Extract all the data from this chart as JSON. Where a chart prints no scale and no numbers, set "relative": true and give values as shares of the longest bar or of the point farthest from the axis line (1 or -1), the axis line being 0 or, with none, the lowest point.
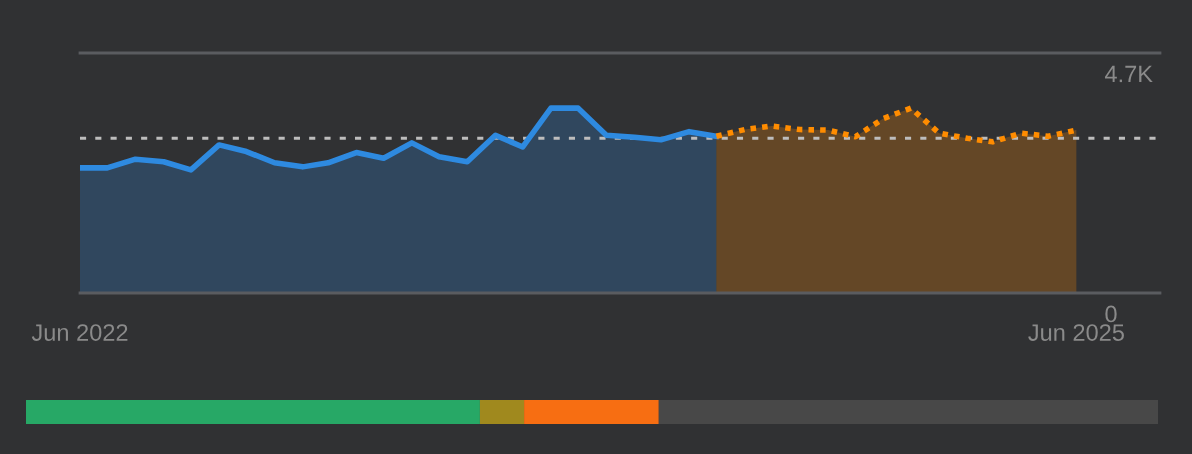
{
  "chart_data": [
    {
      "type": "area",
      "xlim": [
        "2022-06",
        "2025-09"
      ],
      "xticks": [
        {
          "value": "2022-06",
          "label": "Jun 2022"
        },
        {
          "value": "2025-06",
          "label": "Jun 2025"
        }
      ],
      "ylim": [
        0,
        4700
      ],
      "yticks": [
        0,
        {
          "value": 4700,
          "label": "4.7K"
        }
      ],
      "marker": "none",
      "series": [
        {
          "color": "#2e8ae0",
          "line_style": "solid",
          "x": [
            "2022-06",
            "2022-07",
            "2022-08",
            "2022-09",
            "2022-10",
            "2022-11",
            "2022-12",
            "2023-01",
            "2023-02",
            "2023-03",
            "2023-04",
            "2023-05",
            "2023-06",
            "2023-07",
            "2023-08",
            "2023-09",
            "2023-10",
            "2023-11",
            "2023-12",
            "2024-01",
            "2024-02",
            "2024-03",
            "2024-04",
            "2024-05"
          ],
          "values": [
            2450,
            2450,
            2620,
            2570,
            2410,
            2900,
            2770,
            2550,
            2470,
            2550,
            2750,
            2640,
            2940,
            2670,
            2570,
            3090,
            2860,
            3620,
            3620,
            3090,
            3050,
            3000,
            3160,
            3070
          ]
        },
        {
          "color": "#ff8c00",
          "line_style": "dotted",
          "x": [
            "2024-05",
            "2024-06",
            "2024-07",
            "2024-08",
            "2024-09",
            "2024-10",
            "2024-11",
            "2024-12",
            "2025-01",
            "2025-02",
            "2025-03",
            "2025-04",
            "2025-05",
            "2025-06"
          ],
          "values": [
            3070,
            3200,
            3270,
            3200,
            3190,
            3060,
            3420,
            3620,
            3130,
            3030,
            2960,
            3130,
            3070,
            3190
          ]
        }
      ],
      "ref_lines": [
        {
          "axis": "y",
          "value": 3030,
          "color": "#bdbdbd",
          "line_style": "dashed"
        }
      ]
    },
    {
      "type": "bar",
      "orientation": "horizontal",
      "stacked": true,
      "relative": true,
      "categories": [
        null
      ],
      "series": [
        {
          "color": "#27a866",
          "values": [
            0.401
          ]
        },
        {
          "color": "#a0891e",
          "values": [
            0.039
          ]
        },
        {
          "color": "#f76e12",
          "values": [
            0.119
          ]
        },
        {
          "color": "#484848",
          "values": [
            0.441
          ]
        }
      ]
    }
  ]
}
